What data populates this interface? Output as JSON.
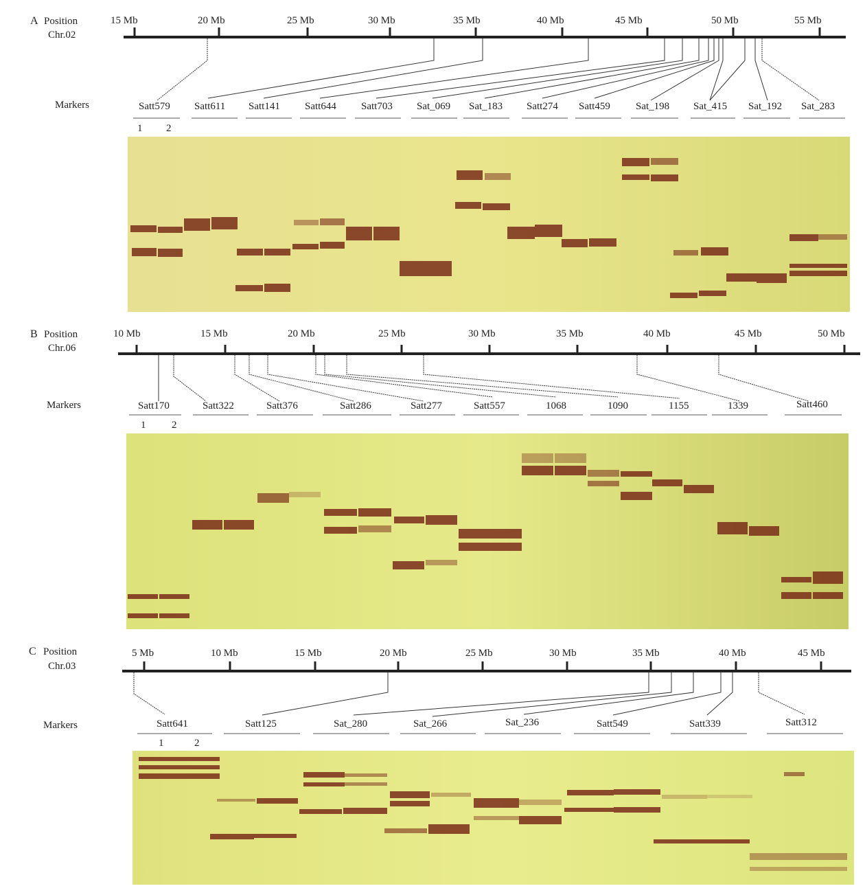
{
  "panels": [
    {
      "letter": "A",
      "position_label": "Position",
      "chromosome": "Chr.02",
      "markers_label": "Markers",
      "lane_labels": [
        "1",
        "2"
      ],
      "mb_labels": [
        "15 Mb",
        "20 Mb",
        "25 Mb",
        "30 Mb",
        "35 Mb",
        "40 Mb",
        "45 Mb",
        "50 Mb",
        "55 Mb"
      ],
      "markers": [
        "Satt579",
        "Satt611",
        "Satt141",
        "Satt644",
        "Satt703",
        "Sat_069",
        "Sat_183",
        "Satt274",
        "Satt459",
        "Sat_198",
        "Sat_415",
        "Sat_192",
        "Sat_283"
      ]
    },
    {
      "letter": "B",
      "position_label": "Position",
      "chromosome": "Chr.06",
      "markers_label": "Markers",
      "lane_labels": [
        "1",
        "2"
      ],
      "mb_labels": [
        "10 Mb",
        "15 Mb",
        "20 Mb",
        "25 Mb",
        "30 Mb",
        "35 Mb",
        "40 Mb",
        "45 Mb",
        "50 Mb"
      ],
      "markers": [
        "Satt170",
        "Satt322",
        "Satt376",
        "Satt286",
        "Satt277",
        "Satt557",
        "1068",
        "1090",
        "1155",
        "1339",
        "Satt460"
      ]
    },
    {
      "letter": "C",
      "position_label": "Position",
      "chromosome": "Chr.03",
      "markers_label": "Markers",
      "lane_labels": [
        "1",
        "2"
      ],
      "mb_labels": [
        "5 Mb",
        "10 Mb",
        "15 Mb",
        "20 Mb",
        "25 Mb",
        "30 Mb",
        "35 Mb",
        "40 Mb",
        "45 Mb"
      ],
      "markers": [
        "Satt641",
        "Satt125",
        "Sat_280",
        "Sat_266",
        "Sat_236",
        "Satt549",
        "Satt339",
        "Satt312"
      ]
    }
  ],
  "colors": {
    "gel_light": "#e6e18a",
    "gel_dark": "#cfcf6e",
    "band": "#7a2e1a",
    "band_faint": "#b06a45"
  }
}
